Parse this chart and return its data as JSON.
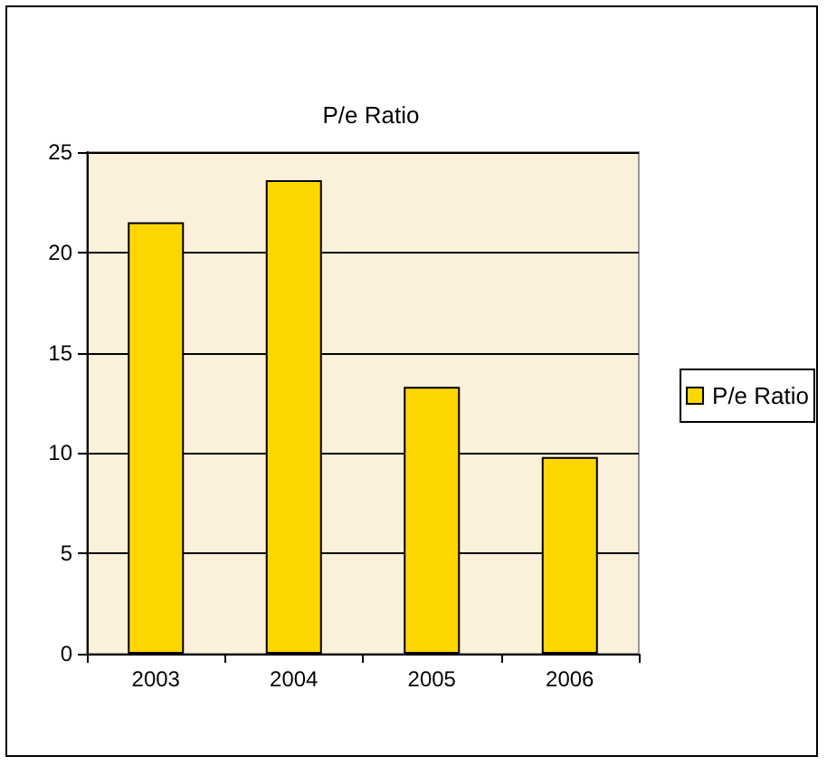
{
  "chart_data": {
    "type": "bar",
    "title": "P/e Ratio",
    "categories": [
      "2003",
      "2004",
      "2005",
      "2006"
    ],
    "series": [
      {
        "name": "P/e Ratio",
        "color": "#ffd700",
        "values": [
          21.5,
          23.6,
          13.3,
          9.8
        ]
      }
    ],
    "ylim": [
      0,
      25
    ],
    "yticks": [
      0,
      5,
      10,
      15,
      20,
      25
    ],
    "grid": "y",
    "legend": "right"
  }
}
